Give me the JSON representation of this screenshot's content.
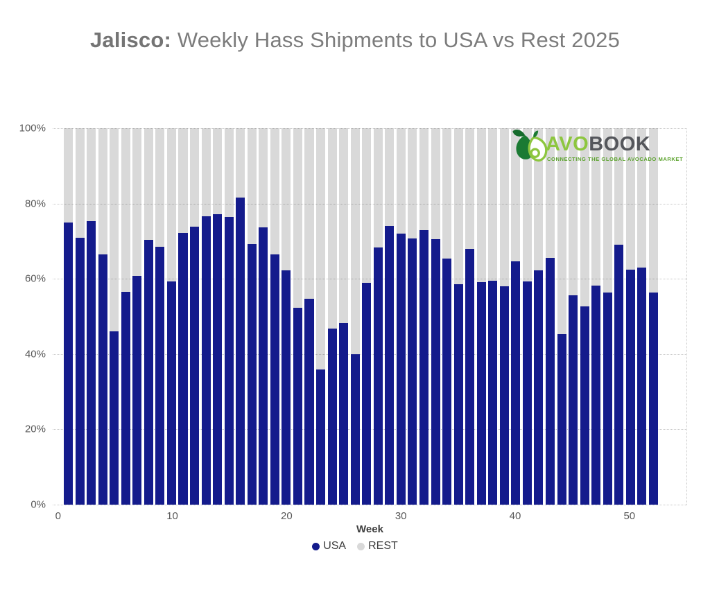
{
  "title": {
    "bold": "Jalisco:",
    "regular": " Weekly Hass Shipments to USA vs Rest 2025"
  },
  "colors": {
    "usa": "#141b8c",
    "rest": "#d9d9d9",
    "grid": "#c6c6c6",
    "title_text": "#7c7c7c",
    "axis_text": "#595959",
    "label_text": "#3d3d3d",
    "logo_green": "#8dc63f",
    "logo_dark_green": "#1b7a33",
    "logo_charcoal": "#54565b"
  },
  "chart_data": {
    "type": "bar",
    "stacking": "percent",
    "title": "Jalisco: Weekly Hass Shipments to USA vs Rest 2025",
    "xlabel": "Week",
    "ylabel": "",
    "ylim": [
      0,
      100
    ],
    "grid": "horizontal-dotted",
    "legend_position": "bottom",
    "x": [
      1,
      2,
      3,
      4,
      5,
      6,
      7,
      8,
      9,
      10,
      11,
      12,
      13,
      14,
      15,
      16,
      17,
      18,
      19,
      20,
      21,
      22,
      23,
      24,
      25,
      26,
      27,
      28,
      29,
      30,
      31,
      32,
      33,
      34,
      35,
      36,
      37,
      38,
      39,
      40,
      41,
      42,
      43,
      44,
      45,
      46,
      47,
      48,
      49,
      50,
      51,
      52
    ],
    "y_tick_values": [
      0,
      20,
      40,
      60,
      80,
      100
    ],
    "y_tick_labels": [
      "0%",
      "20%",
      "40%",
      "60%",
      "80%",
      "100%"
    ],
    "x_tick_values": [
      0,
      10,
      20,
      30,
      40,
      50
    ],
    "series": [
      {
        "name": "USA",
        "color": "#141b8c",
        "values": [
          75.0,
          70.9,
          75.4,
          66.4,
          46.0,
          56.6,
          60.7,
          70.4,
          68.5,
          59.3,
          72.1,
          73.9,
          76.6,
          77.1,
          76.4,
          81.6,
          69.2,
          73.6,
          66.5,
          62.2,
          52.3,
          54.7,
          35.9,
          46.7,
          48.2,
          40.0,
          58.9,
          68.4,
          74.1,
          72.0,
          70.8,
          73.0,
          70.6,
          65.4,
          58.5,
          67.9,
          59.1,
          59.4,
          58.1,
          64.7,
          59.3,
          62.2,
          65.5,
          45.3,
          55.6,
          52.7,
          58.2,
          56.4,
          69.0,
          62.5,
          62.9,
          56.3
        ]
      },
      {
        "name": "REST",
        "color": "#d9d9d9",
        "values": [
          25.0,
          29.1,
          24.6,
          33.6,
          54.0,
          43.4,
          39.3,
          29.6,
          31.5,
          40.7,
          27.9,
          26.1,
          23.4,
          22.9,
          23.6,
          18.4,
          30.8,
          26.4,
          33.5,
          37.8,
          47.7,
          45.3,
          64.1,
          53.3,
          51.8,
          60.0,
          41.1,
          31.6,
          25.9,
          28.0,
          29.2,
          27.0,
          29.4,
          34.6,
          41.5,
          32.1,
          40.9,
          40.6,
          41.9,
          35.3,
          40.7,
          37.8,
          34.5,
          54.7,
          44.4,
          47.3,
          41.8,
          43.6,
          31.0,
          37.5,
          37.1,
          43.7
        ]
      }
    ]
  },
  "legend": [
    {
      "label": "USA",
      "color": "#141b8c"
    },
    {
      "label": "REST",
      "color": "#d9d9d9"
    }
  ],
  "logo": {
    "green_text": "AVO",
    "dark_text": "BOOK",
    "tagline": "CONNECTING THE GLOBAL AVOCADO MARKET"
  }
}
